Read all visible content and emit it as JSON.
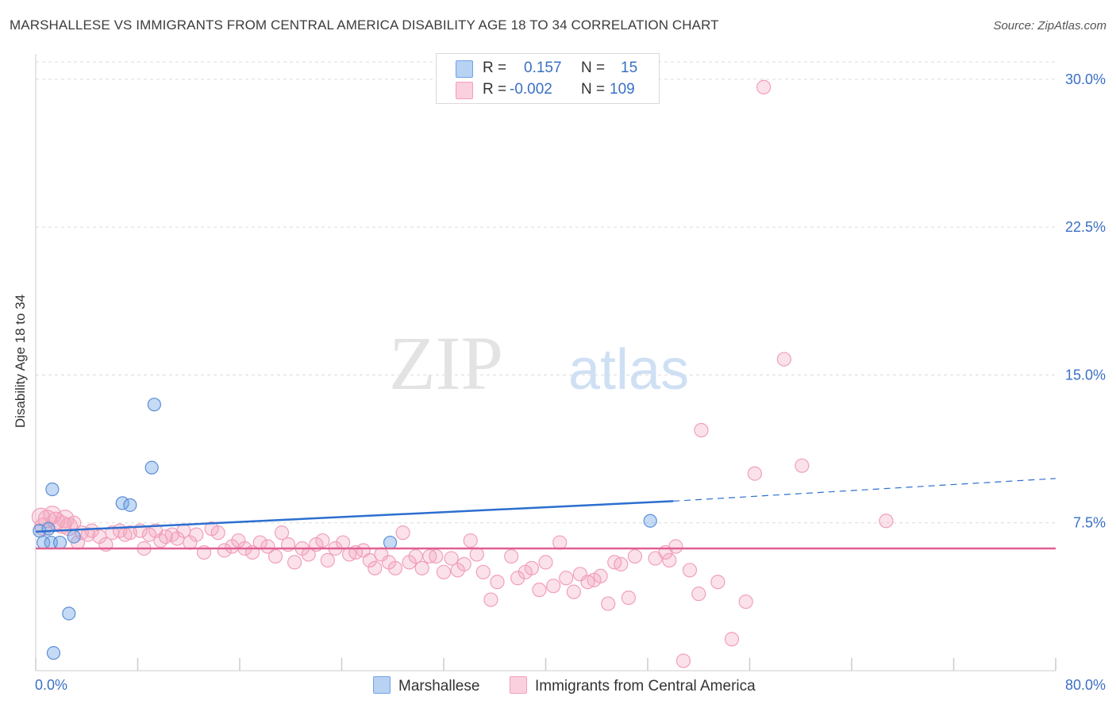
{
  "title": "MARSHALLESE VS IMMIGRANTS FROM CENTRAL AMERICA DISABILITY AGE 18 TO 34 CORRELATION CHART",
  "source": "Source: ZipAtlas.com",
  "watermark": "ZIPatlas",
  "legend_stats": {
    "r_label": "R =",
    "n_label": "N =",
    "rows": [
      {
        "series": "Marshallese",
        "r": "0.157",
        "n": "15"
      },
      {
        "series": "Immigrants from Central America",
        "r": "-0.002",
        "n": "109"
      }
    ]
  },
  "chart_data": {
    "type": "scatter",
    "title": "MARSHALLESE VS IMMIGRANTS FROM CENTRAL AMERICA DISABILITY AGE 18 TO 34 CORRELATION CHART",
    "xlabel": "",
    "ylabel": "Disability Age 18 to 34",
    "xlim": [
      0,
      80
    ],
    "ylim": [
      0,
      31
    ],
    "x_tick_labels": [
      "0.0%",
      "80.0%"
    ],
    "y_ticks": [
      7.5,
      15.0,
      22.5,
      30.0
    ],
    "y_tick_labels": [
      "7.5%",
      "15.0%",
      "22.5%",
      "30.0%"
    ],
    "grid": true,
    "legend_position": "bottom",
    "colors": {
      "Marshallese": "#6fa3e6",
      "Immigrants from Central America": "#f19fbb"
    },
    "series": [
      {
        "name": "Marshallese",
        "color": "#6fa3e6",
        "trend": {
          "x": [
            0,
            50
          ],
          "y": [
            7.05,
            8.6
          ],
          "dashed_to_x": 80,
          "dashed_y": 9.75,
          "color": "#2c6fcf"
        },
        "points": [
          {
            "x": 0.3,
            "y": 7.1
          },
          {
            "x": 0.6,
            "y": 6.5
          },
          {
            "x": 1.0,
            "y": 7.2
          },
          {
            "x": 1.2,
            "y": 6.5
          },
          {
            "x": 1.3,
            "y": 9.2
          },
          {
            "x": 1.4,
            "y": 0.9
          },
          {
            "x": 1.9,
            "y": 6.5
          },
          {
            "x": 2.6,
            "y": 2.9
          },
          {
            "x": 3.0,
            "y": 6.8
          },
          {
            "x": 6.8,
            "y": 8.5
          },
          {
            "x": 7.4,
            "y": 8.4
          },
          {
            "x": 9.1,
            "y": 10.3
          },
          {
            "x": 9.3,
            "y": 13.5
          },
          {
            "x": 27.8,
            "y": 6.5
          },
          {
            "x": 48.2,
            "y": 7.6
          }
        ]
      },
      {
        "name": "Immigrants from Central America",
        "color": "#f19fbb",
        "trend": {
          "x": [
            0,
            80
          ],
          "y": [
            6.2,
            6.2
          ],
          "color": "#e06090"
        },
        "points": [
          {
            "x": 0.4,
            "y": 7.8
          },
          {
            "x": 0.6,
            "y": 7.3
          },
          {
            "x": 0.9,
            "y": 7.7
          },
          {
            "x": 1.3,
            "y": 7.9
          },
          {
            "x": 1.6,
            "y": 7.6
          },
          {
            "x": 2.1,
            "y": 7.4
          },
          {
            "x": 2.3,
            "y": 7.7
          },
          {
            "x": 2.6,
            "y": 7.3
          },
          {
            "x": 3.0,
            "y": 7.5
          },
          {
            "x": 3.3,
            "y": 6.5
          },
          {
            "x": 3.6,
            "y": 7.0
          },
          {
            "x": 4.1,
            "y": 6.9
          },
          {
            "x": 4.4,
            "y": 7.1
          },
          {
            "x": 5.0,
            "y": 6.8
          },
          {
            "x": 5.5,
            "y": 6.4
          },
          {
            "x": 6.0,
            "y": 7.0
          },
          {
            "x": 6.6,
            "y": 7.1
          },
          {
            "x": 7.0,
            "y": 6.9
          },
          {
            "x": 7.4,
            "y": 7.0
          },
          {
            "x": 8.2,
            "y": 7.1
          },
          {
            "x": 8.5,
            "y": 6.2
          },
          {
            "x": 8.9,
            "y": 6.9
          },
          {
            "x": 9.4,
            "y": 7.1
          },
          {
            "x": 9.8,
            "y": 6.6
          },
          {
            "x": 10.2,
            "y": 6.8
          },
          {
            "x": 10.7,
            "y": 6.9
          },
          {
            "x": 11.1,
            "y": 6.7
          },
          {
            "x": 11.6,
            "y": 7.1
          },
          {
            "x": 12.1,
            "y": 6.5
          },
          {
            "x": 12.6,
            "y": 6.9
          },
          {
            "x": 13.2,
            "y": 6.0
          },
          {
            "x": 13.8,
            "y": 7.2
          },
          {
            "x": 14.3,
            "y": 7.0
          },
          {
            "x": 14.8,
            "y": 6.1
          },
          {
            "x": 15.4,
            "y": 6.3
          },
          {
            "x": 15.9,
            "y": 6.6
          },
          {
            "x": 16.4,
            "y": 6.2
          },
          {
            "x": 17.0,
            "y": 6.0
          },
          {
            "x": 17.6,
            "y": 6.5
          },
          {
            "x": 18.2,
            "y": 6.3
          },
          {
            "x": 18.8,
            "y": 5.8
          },
          {
            "x": 19.3,
            "y": 7.0
          },
          {
            "x": 19.8,
            "y": 6.4
          },
          {
            "x": 20.3,
            "y": 5.5
          },
          {
            "x": 20.9,
            "y": 6.2
          },
          {
            "x": 21.4,
            "y": 5.9
          },
          {
            "x": 22.0,
            "y": 6.4
          },
          {
            "x": 22.5,
            "y": 6.6
          },
          {
            "x": 22.9,
            "y": 5.6
          },
          {
            "x": 23.5,
            "y": 6.2
          },
          {
            "x": 24.1,
            "y": 6.5
          },
          {
            "x": 24.6,
            "y": 5.9
          },
          {
            "x": 25.1,
            "y": 6.0
          },
          {
            "x": 25.7,
            "y": 6.1
          },
          {
            "x": 26.2,
            "y": 5.6
          },
          {
            "x": 26.6,
            "y": 5.2
          },
          {
            "x": 27.1,
            "y": 5.9
          },
          {
            "x": 27.7,
            "y": 5.5
          },
          {
            "x": 28.2,
            "y": 5.2
          },
          {
            "x": 28.8,
            "y": 7.0
          },
          {
            "x": 29.3,
            "y": 5.5
          },
          {
            "x": 29.8,
            "y": 5.8
          },
          {
            "x": 30.3,
            "y": 5.2
          },
          {
            "x": 30.9,
            "y": 5.8
          },
          {
            "x": 31.4,
            "y": 5.8
          },
          {
            "x": 32.0,
            "y": 5.0
          },
          {
            "x": 32.6,
            "y": 5.7
          },
          {
            "x": 33.1,
            "y": 5.1
          },
          {
            "x": 33.6,
            "y": 5.4
          },
          {
            "x": 34.1,
            "y": 6.6
          },
          {
            "x": 34.6,
            "y": 5.9
          },
          {
            "x": 35.1,
            "y": 5.0
          },
          {
            "x": 35.7,
            "y": 3.6
          },
          {
            "x": 36.2,
            "y": 4.5
          },
          {
            "x": 37.3,
            "y": 5.8
          },
          {
            "x": 37.8,
            "y": 4.7
          },
          {
            "x": 38.4,
            "y": 5.0
          },
          {
            "x": 38.9,
            "y": 5.2
          },
          {
            "x": 39.5,
            "y": 4.1
          },
          {
            "x": 40.0,
            "y": 5.5
          },
          {
            "x": 40.6,
            "y": 4.3
          },
          {
            "x": 41.1,
            "y": 6.5
          },
          {
            "x": 41.6,
            "y": 4.7
          },
          {
            "x": 42.2,
            "y": 4.0
          },
          {
            "x": 42.7,
            "y": 4.9
          },
          {
            "x": 43.3,
            "y": 4.5
          },
          {
            "x": 43.8,
            "y": 4.6
          },
          {
            "x": 44.3,
            "y": 4.8
          },
          {
            "x": 44.9,
            "y": 3.4
          },
          {
            "x": 45.4,
            "y": 5.5
          },
          {
            "x": 45.9,
            "y": 5.4
          },
          {
            "x": 46.5,
            "y": 3.7
          },
          {
            "x": 47.0,
            "y": 5.8
          },
          {
            "x": 48.6,
            "y": 5.7
          },
          {
            "x": 49.7,
            "y": 5.6
          },
          {
            "x": 50.2,
            "y": 6.3
          },
          {
            "x": 50.8,
            "y": 0.5
          },
          {
            "x": 51.3,
            "y": 5.1
          },
          {
            "x": 52.0,
            "y": 3.9
          },
          {
            "x": 52.2,
            "y": 12.2
          },
          {
            "x": 53.5,
            "y": 4.5
          },
          {
            "x": 54.6,
            "y": 1.6
          },
          {
            "x": 55.7,
            "y": 3.5
          },
          {
            "x": 56.4,
            "y": 10.0
          },
          {
            "x": 57.1,
            "y": 29.6
          },
          {
            "x": 58.7,
            "y": 15.8
          },
          {
            "x": 60.1,
            "y": 10.4
          },
          {
            "x": 66.7,
            "y": 7.6
          },
          {
            "x": 49.4,
            "y": 6.0
          }
        ]
      }
    ]
  }
}
